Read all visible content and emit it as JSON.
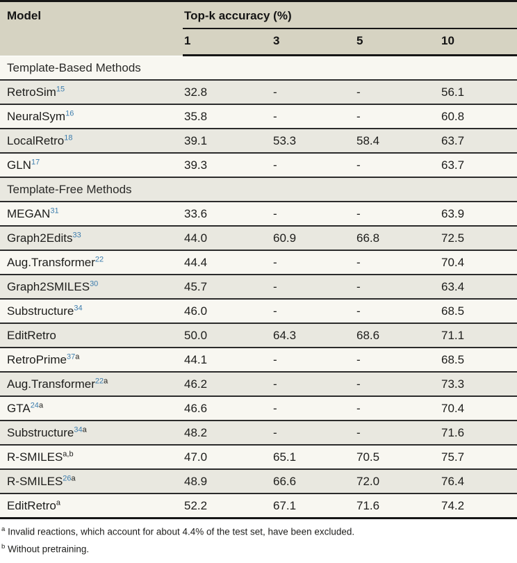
{
  "table": {
    "model_header": "Model",
    "group_header": "Top-k accuracy (%)",
    "k_headers": [
      "1",
      "3",
      "5",
      "10"
    ],
    "rows": [
      {
        "type": "section",
        "label": "Template-Based Methods"
      },
      {
        "type": "data",
        "model": "RetroSim",
        "ref": "15",
        "note": "",
        "values": [
          "32.8",
          "-",
          "-",
          "56.1"
        ]
      },
      {
        "type": "data",
        "model": "NeuralSym",
        "ref": "16",
        "note": "",
        "values": [
          "35.8",
          "-",
          "-",
          "60.8"
        ]
      },
      {
        "type": "data",
        "model": "LocalRetro",
        "ref": "18",
        "note": "",
        "values": [
          "39.1",
          "53.3",
          "58.4",
          "63.7"
        ]
      },
      {
        "type": "data",
        "model": "GLN",
        "ref": "17",
        "note": "",
        "values": [
          "39.3",
          "-",
          "-",
          "63.7"
        ]
      },
      {
        "type": "section",
        "label": "Template-Free Methods"
      },
      {
        "type": "data",
        "model": "MEGAN",
        "ref": "31",
        "note": "",
        "values": [
          "33.6",
          "-",
          "-",
          "63.9"
        ]
      },
      {
        "type": "data",
        "model": "Graph2Edits",
        "ref": "33",
        "note": "",
        "values": [
          "44.0",
          "60.9",
          "66.8",
          "72.5"
        ]
      },
      {
        "type": "data",
        "model": "Aug.Transformer",
        "ref": "22",
        "note": "",
        "values": [
          "44.4",
          "-",
          "-",
          "70.4"
        ]
      },
      {
        "type": "data",
        "model": "Graph2SMILES",
        "ref": "30",
        "note": "",
        "values": [
          "45.7",
          "-",
          "-",
          "63.4"
        ]
      },
      {
        "type": "data",
        "model": "Substructure",
        "ref": "34",
        "note": "",
        "values": [
          "46.0",
          "-",
          "-",
          "68.5"
        ]
      },
      {
        "type": "data",
        "model": "EditRetro",
        "ref": "",
        "note": "",
        "values": [
          "50.0",
          "64.3",
          "68.6",
          "71.1"
        ]
      },
      {
        "type": "data",
        "model": "RetroPrime",
        "ref": "37",
        "note": "a",
        "values": [
          "44.1",
          "-",
          "-",
          "68.5"
        ]
      },
      {
        "type": "data",
        "model": "Aug.Transformer",
        "ref": "22",
        "note": "a",
        "values": [
          "46.2",
          "-",
          "-",
          "73.3"
        ]
      },
      {
        "type": "data",
        "model": "GTA",
        "ref": "24",
        "note": "a",
        "values": [
          "46.6",
          "-",
          "-",
          "70.4"
        ]
      },
      {
        "type": "data",
        "model": "Substructure",
        "ref": "34",
        "note": "a",
        "values": [
          "48.2",
          "-",
          "-",
          "71.6"
        ]
      },
      {
        "type": "data",
        "model": "R-SMILES",
        "ref": "",
        "note": "a,b",
        "values": [
          "47.0",
          "65.1",
          "70.5",
          "75.7"
        ]
      },
      {
        "type": "data",
        "model": "R-SMILES",
        "ref": "26",
        "note": "a",
        "values": [
          "48.9",
          "66.6",
          "72.0",
          "76.4"
        ]
      },
      {
        "type": "data",
        "model": "EditRetro",
        "ref": "",
        "note": "a",
        "values": [
          "52.2",
          "67.1",
          "71.6",
          "74.2"
        ]
      }
    ]
  },
  "footnotes": [
    {
      "marker": "a",
      "text": "Invalid reactions, which account for about 4.4% of the test set, have been excluded."
    },
    {
      "marker": "b",
      "text": "Without pretraining."
    }
  ],
  "colors": {
    "header_bg": "#d6d3c2",
    "row_gray": "#e9e8e0",
    "row_white": "#f8f7f1",
    "border_dark": "#161616",
    "reference_blue": "#3d7dad"
  }
}
